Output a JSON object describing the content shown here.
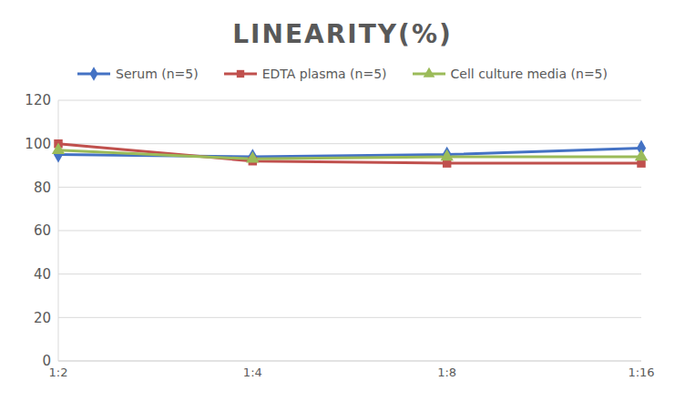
{
  "chart_data": {
    "type": "line",
    "title": "LINEARITY(%)",
    "categories": [
      "1:2",
      "1:4",
      "1:8",
      "1:16"
    ],
    "series": [
      {
        "name": "Serum (n=5)",
        "color": "#4472c4",
        "marker": "diamond",
        "values": [
          95,
          94,
          95,
          98
        ]
      },
      {
        "name": "EDTA plasma (n=5)",
        "color": "#c0504d",
        "marker": "square",
        "values": [
          100,
          92,
          91,
          91
        ]
      },
      {
        "name": "Cell culture media (n=5)",
        "color": "#9bbb59",
        "marker": "triangle",
        "values": [
          97,
          93,
          94,
          94
        ]
      }
    ],
    "ylim": [
      0,
      120
    ],
    "yticks": [
      0,
      20,
      40,
      60,
      80,
      100,
      120
    ],
    "grid": true,
    "legend": "top"
  }
}
